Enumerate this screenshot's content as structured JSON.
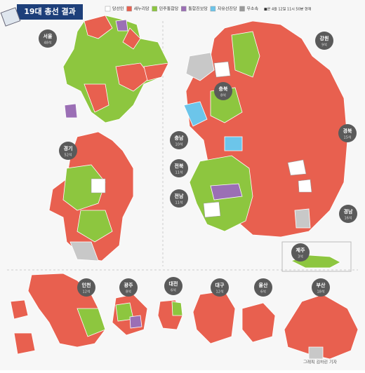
{
  "header": {
    "title": "19대 총선 결과"
  },
  "legend": {
    "items": [
      {
        "label": "당선인",
        "color": "#ffffff"
      },
      {
        "label": "새누리당",
        "color": "#e8604f"
      },
      {
        "label": "민주통합당",
        "color": "#8dc63f"
      },
      {
        "label": "통합진보당",
        "color": "#9b6fb5"
      },
      {
        "label": "자유선진당",
        "color": "#6cc5ea"
      },
      {
        "label": "무소속",
        "color": "#9a9a9a"
      }
    ],
    "note": "■은 4월 12일 11시 50분 현재"
  },
  "regions": [
    {
      "name": "서울",
      "seats": "48석"
    },
    {
      "name": "경기",
      "seats": "52석"
    },
    {
      "name": "강원",
      "seats": "9석"
    },
    {
      "name": "충북",
      "seats": "8석"
    },
    {
      "name": "충남",
      "seats": "10석"
    },
    {
      "name": "전북",
      "seats": "11석"
    },
    {
      "name": "전남",
      "seats": "11석"
    },
    {
      "name": "경북",
      "seats": "15석"
    },
    {
      "name": "경남",
      "seats": "16석"
    },
    {
      "name": "제주",
      "seats": "3석"
    },
    {
      "name": "인천",
      "seats": "12석"
    },
    {
      "name": "광주",
      "seats": "8석"
    },
    {
      "name": "대전",
      "seats": "6석"
    },
    {
      "name": "대구",
      "seats": "12석"
    },
    {
      "name": "울산",
      "seats": "6석"
    },
    {
      "name": "부산",
      "seats": "18석"
    }
  ],
  "credit": "그래픽 김하린 기자"
}
